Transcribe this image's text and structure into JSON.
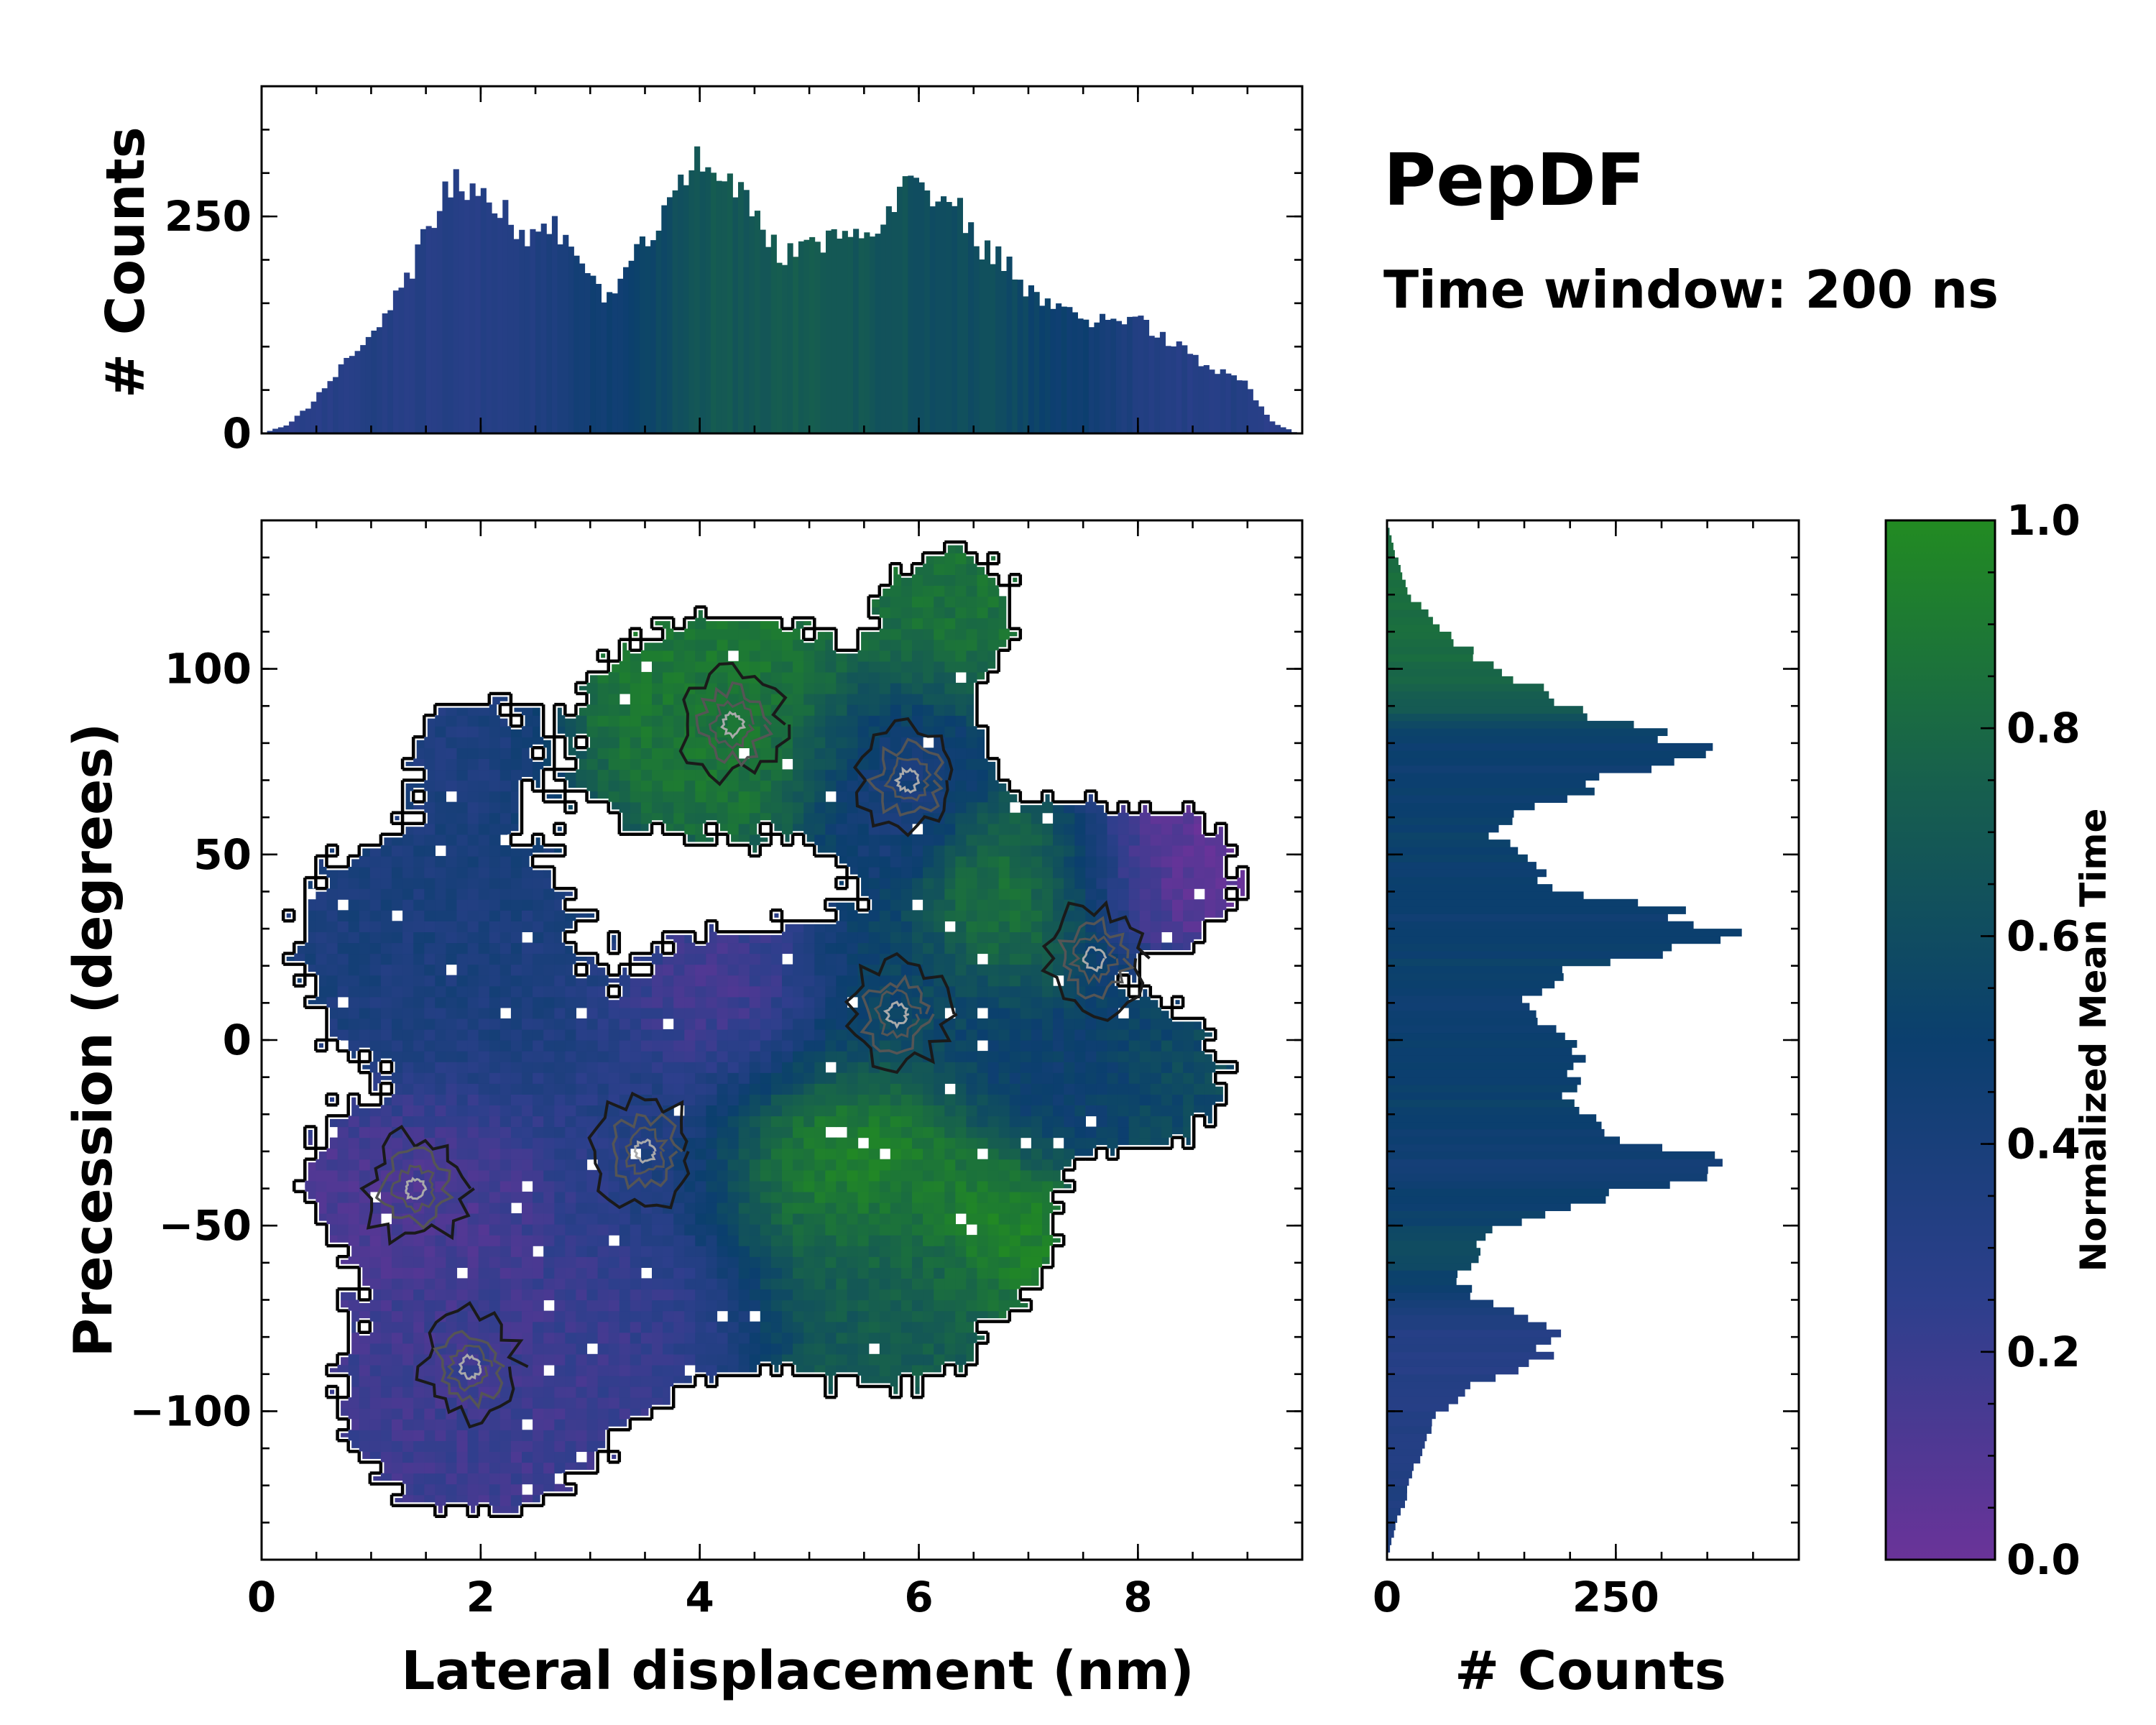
{
  "title": "PepDF",
  "subtitle": "Time window: 200 ns",
  "colors": {
    "colormap": [
      "#6a3399",
      "#2d3f8c",
      "#0b3f6e",
      "#17604d",
      "#228b22"
    ],
    "outline": "#000000",
    "contour_dark": "#1a1a1a",
    "contour_mid": "#555555",
    "contour_light": "#aaaaaa"
  },
  "chart_data": [
    {
      "name": "joint-distribution",
      "type": "heatmap",
      "xlabel": "Lateral displacement (nm)",
      "ylabel": "Precession (degrees)",
      "xlim": [
        0,
        9.5
      ],
      "ylim": [
        -140,
        140
      ],
      "xticks": [
        0,
        2,
        4,
        6,
        8
      ],
      "xtick_labels": [
        "0",
        "2",
        "4",
        "6",
        "8"
      ],
      "yticks": [
        -100,
        -50,
        0,
        50,
        100
      ],
      "ytick_labels": [
        "−100",
        "−50",
        "0",
        "50",
        "100"
      ],
      "regions": [
        {
          "x": 2.0,
          "y": -95,
          "rx": 1.4,
          "ry": 35,
          "t": 0.18,
          "density": 0.8
        },
        {
          "x": 1.4,
          "y": -40,
          "rx": 1.2,
          "ry": 25,
          "t": 0.12,
          "density": 0.6
        },
        {
          "x": 1.6,
          "y": 25,
          "rx": 1.6,
          "ry": 40,
          "t": 0.38,
          "density": 0.6
        },
        {
          "x": 1.9,
          "y": 80,
          "rx": 0.7,
          "ry": 20,
          "t": 0.35,
          "density": 0.4
        },
        {
          "x": 3.5,
          "y": -30,
          "rx": 1.0,
          "ry": 30,
          "t": 0.3,
          "density": 1.0
        },
        {
          "x": 4.2,
          "y": 85,
          "rx": 1.3,
          "ry": 30,
          "t": 0.88,
          "density": 0.9
        },
        {
          "x": 5.8,
          "y": 70,
          "rx": 0.8,
          "ry": 25,
          "t": 0.35,
          "density": 0.9
        },
        {
          "x": 5.8,
          "y": 10,
          "rx": 1.0,
          "ry": 25,
          "t": 0.55,
          "density": 0.8
        },
        {
          "x": 4.3,
          "y": 10,
          "rx": 0.9,
          "ry": 25,
          "t": 0.12,
          "density": 0.5
        },
        {
          "x": 5.3,
          "y": -30,
          "rx": 1.2,
          "ry": 25,
          "t": 0.98,
          "density": 0.6
        },
        {
          "x": 5.6,
          "y": -70,
          "rx": 1.3,
          "ry": 30,
          "t": 0.72,
          "density": 0.6
        },
        {
          "x": 7.0,
          "y": 40,
          "rx": 0.8,
          "ry": 25,
          "t": 0.98,
          "density": 0.6
        },
        {
          "x": 8.2,
          "y": 45,
          "rx": 1.1,
          "ry": 25,
          "t": 0.05,
          "density": 0.5
        },
        {
          "x": 8.3,
          "y": -10,
          "rx": 0.9,
          "ry": 25,
          "t": 0.6,
          "density": 0.4
        },
        {
          "x": 6.8,
          "y": -50,
          "rx": 0.6,
          "ry": 20,
          "t": 1.0,
          "density": 0.4
        },
        {
          "x": 6.3,
          "y": 115,
          "rx": 0.8,
          "ry": 25,
          "t": 0.85,
          "density": 0.5
        },
        {
          "x": 7.2,
          "y": -10,
          "rx": 0.9,
          "ry": 25,
          "t": 0.45,
          "density": 0.5
        },
        {
          "x": 3.6,
          "y": -75,
          "rx": 1.0,
          "ry": 20,
          "t": 0.2,
          "density": 0.5
        }
      ],
      "contour_peaks": [
        {
          "x": 3.5,
          "y": -30
        },
        {
          "x": 5.9,
          "y": 70
        },
        {
          "x": 4.3,
          "y": 85
        },
        {
          "x": 5.8,
          "y": 7
        },
        {
          "x": 1.9,
          "y": -88
        },
        {
          "x": 1.4,
          "y": -40
        },
        {
          "x": 7.6,
          "y": 22
        }
      ]
    },
    {
      "name": "lateral-displacement-histogram",
      "type": "bar",
      "ylabel": "# Counts",
      "xlim": [
        0,
        9.5
      ],
      "ylim": [
        0,
        400
      ],
      "yticks": [
        0,
        250
      ],
      "ytick_labels": [
        "0",
        "250"
      ],
      "x": [
        0.0,
        0.25,
        0.5,
        0.8,
        1.0,
        1.2,
        1.4,
        1.6,
        1.8,
        2.0,
        2.2,
        2.4,
        2.6,
        2.8,
        3.0,
        3.2,
        3.4,
        3.6,
        3.8,
        4.0,
        4.2,
        4.4,
        4.6,
        4.8,
        5.0,
        5.2,
        5.4,
        5.6,
        5.8,
        5.9,
        6.0,
        6.2,
        6.4,
        6.6,
        6.8,
        7.0,
        7.2,
        7.4,
        7.6,
        7.8,
        8.0,
        8.2,
        8.4,
        8.6,
        8.8,
        9.0,
        9.2,
        9.45
      ],
      "values": [
        0,
        10,
        40,
        90,
        105,
        150,
        200,
        260,
        285,
        280,
        265,
        230,
        250,
        220,
        170,
        160,
        200,
        240,
        290,
        310,
        305,
        290,
        225,
        205,
        220,
        225,
        230,
        230,
        280,
        310,
        300,
        275,
        250,
        210,
        200,
        165,
        145,
        135,
        130,
        125,
        130,
        115,
        100,
        80,
        70,
        55,
        15,
        0
      ],
      "times": [
        0.3,
        0.25,
        0.28,
        0.3,
        0.32,
        0.3,
        0.3,
        0.3,
        0.3,
        0.3,
        0.32,
        0.33,
        0.35,
        0.4,
        0.45,
        0.48,
        0.5,
        0.55,
        0.62,
        0.68,
        0.7,
        0.68,
        0.7,
        0.72,
        0.72,
        0.7,
        0.68,
        0.66,
        0.65,
        0.65,
        0.62,
        0.6,
        0.6,
        0.62,
        0.6,
        0.55,
        0.5,
        0.48,
        0.45,
        0.4,
        0.35,
        0.32,
        0.3,
        0.3,
        0.32,
        0.3,
        0.28,
        0.28
      ]
    },
    {
      "name": "precession-histogram",
      "type": "bar",
      "orientation": "horizontal",
      "xlabel": "# Counts",
      "xlim": [
        0,
        450
      ],
      "xticks": [
        0,
        250
      ],
      "xtick_labels": [
        "0",
        "250"
      ],
      "y": [
        140,
        130,
        120,
        110,
        100,
        96,
        90,
        85,
        80,
        75,
        70,
        65,
        60,
        55,
        50,
        45,
        40,
        35,
        30,
        27,
        25,
        20,
        15,
        10,
        5,
        0,
        -5,
        -10,
        -15,
        -20,
        -25,
        -30,
        -33,
        -36,
        -40,
        -45,
        -50,
        -55,
        -60,
        -65,
        -70,
        -75,
        -80,
        -85,
        -90,
        -95,
        -100,
        -105,
        -110,
        -115,
        -120,
        -125,
        -130,
        -135,
        -140
      ],
      "values": [
        0,
        10,
        25,
        60,
        120,
        150,
        210,
        260,
        330,
        320,
        230,
        200,
        130,
        120,
        140,
        160,
        200,
        300,
        380,
        395,
        320,
        220,
        170,
        140,
        170,
        200,
        220,
        210,
        180,
        200,
        250,
        320,
        360,
        340,
        280,
        200,
        120,
        100,
        90,
        80,
        100,
        150,
        190,
        170,
        130,
        80,
        60,
        50,
        40,
        30,
        25,
        20,
        10,
        5,
        0
      ],
      "times": [
        0.8,
        0.82,
        0.82,
        0.82,
        0.8,
        0.78,
        0.72,
        0.58,
        0.5,
        0.48,
        0.48,
        0.5,
        0.5,
        0.52,
        0.5,
        0.5,
        0.48,
        0.48,
        0.48,
        0.48,
        0.5,
        0.52,
        0.5,
        0.48,
        0.5,
        0.5,
        0.5,
        0.5,
        0.52,
        0.52,
        0.48,
        0.45,
        0.45,
        0.46,
        0.48,
        0.5,
        0.55,
        0.58,
        0.6,
        0.5,
        0.42,
        0.35,
        0.32,
        0.3,
        0.3,
        0.3,
        0.3,
        0.32,
        0.32,
        0.33,
        0.35,
        0.35,
        0.35,
        0.35,
        0.35
      ]
    },
    {
      "name": "colorbar",
      "type": "colorbar",
      "label": "Normalized Mean Time",
      "range": [
        0.0,
        1.0
      ],
      "ticks": [
        0.0,
        0.2,
        0.4,
        0.6,
        0.8,
        1.0
      ],
      "tick_labels": [
        "0.0",
        "0.2",
        "0.4",
        "0.6",
        "0.8",
        "1.0"
      ]
    }
  ]
}
